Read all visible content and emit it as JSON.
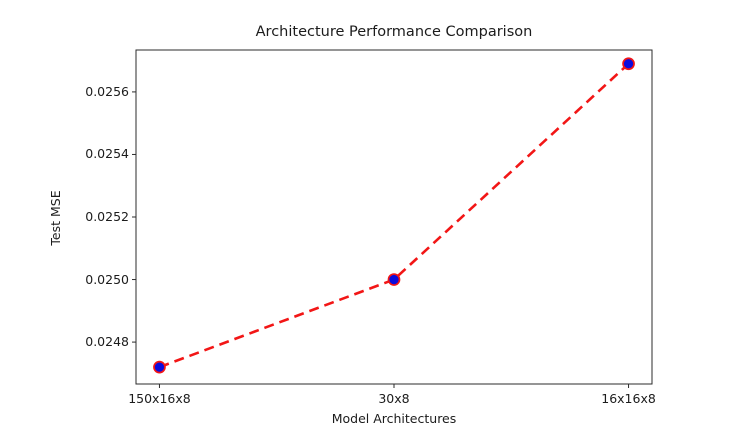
{
  "figure": {
    "background_color": "#ffffff",
    "spine_color": "#2b2b2b"
  },
  "chart_data": {
    "type": "line",
    "title": "Architecture Performance Comparison",
    "xlabel": "Model Architectures",
    "ylabel": "Test MSE",
    "categories": [
      "150x16x8",
      "30x8",
      "16x16x8"
    ],
    "series": [
      {
        "name": "Test MSE",
        "values": [
          0.02472,
          0.025,
          0.02569
        ]
      }
    ],
    "ytick_labels": [
      "0.0248",
      "0.0250",
      "0.0252",
      "0.0254",
      "0.0256"
    ],
    "ylim": [
      0.024666,
      0.025734
    ],
    "xlim": [
      -0.1,
      2.1
    ],
    "grid": false,
    "legend_position": "none",
    "line_color": "#f21616",
    "line_style": "dashed",
    "marker_shape": "circle",
    "marker_fill_color": "#0b0bdd",
    "marker_edge_color": "#f21616"
  }
}
